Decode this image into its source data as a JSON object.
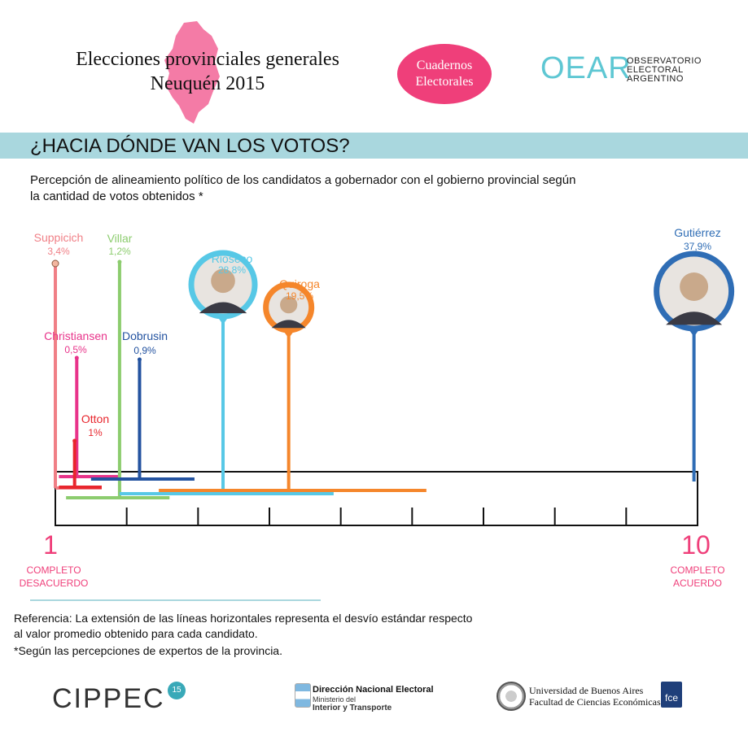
{
  "header": {
    "title_line1": "Elecciones provinciales generales",
    "title_line2": "Neuquén 2015",
    "badge_line1": "Cuadernos",
    "badge_line2": "Electorales",
    "logo_mark": "OEAR",
    "logo_line1": "OBSERVATORIO",
    "logo_line2": "ELECTORAL",
    "logo_line3": "ARGENTINO"
  },
  "section_title": "¿HACIA DÓNDE VAN LOS VOTOS?",
  "subtitle_line1": "Percepción de alineamiento político de los candidatos a gobernador con el gobierno provincial según",
  "subtitle_line2": "la cantidad de votos obtenidos *",
  "chart_data": {
    "type": "scatter",
    "x_axis": {
      "min": 1,
      "max": 10,
      "min_label": "1",
      "max_label": "10",
      "min_caption_line1": "COMPLETO",
      "min_caption_line2": "DESACUERDO",
      "max_caption_line1": "COMPLETO",
      "max_caption_line2": "ACUERDO"
    },
    "candidates": [
      {
        "name": "Suppicich",
        "percent_label": "3,4%",
        "votes_pct": 3.4,
        "mean": 1.0,
        "sd_low": 1.0,
        "sd_high": 1.65,
        "color": "#f07f86",
        "label_color": "#f07f86"
      },
      {
        "name": "Christiansen",
        "percent_label": "0,5%",
        "votes_pct": 0.5,
        "mean": 1.3,
        "sd_low": 1.05,
        "sd_high": 1.9,
        "color": "#e8338a",
        "label_color": "#e8338a"
      },
      {
        "name": "Otton",
        "percent_label": "1%",
        "votes_pct": 1.0,
        "mean": 1.27,
        "sd_low": 1.05,
        "sd_high": 1.65,
        "color": "#e8262d",
        "label_color": "#e8262d"
      },
      {
        "name": "Villar",
        "percent_label": "1,2%",
        "votes_pct": 1.2,
        "mean": 1.9,
        "sd_low": 1.15,
        "sd_high": 2.6,
        "color": "#8ccc6e",
        "label_color": "#8ccc6e"
      },
      {
        "name": "Dobrusin",
        "percent_label": "0,9%",
        "votes_pct": 0.9,
        "mean": 2.18,
        "sd_low": 1.5,
        "sd_high": 2.95,
        "color": "#2453a0",
        "label_color": "#2453a0"
      },
      {
        "name": "Rioseco",
        "percent_label": "28,8%",
        "votes_pct": 28.8,
        "mean": 3.35,
        "sd_low": 1.9,
        "sd_high": 4.9,
        "color": "#57c8e6",
        "label_color": "#57c8e6",
        "photo": true
      },
      {
        "name": "Quiroga",
        "percent_label": "19,5%",
        "votes_pct": 19.5,
        "mean": 4.27,
        "sd_low": 2.45,
        "sd_high": 6.2,
        "color": "#f5862b",
        "label_color": "#f5862b",
        "photo": true
      },
      {
        "name": "Gutiérrez",
        "percent_label": "37,9%",
        "votes_pct": 37.9,
        "mean": 9.95,
        "sd_low": 9.95,
        "sd_high": 9.95,
        "color": "#2f6db5",
        "label_color": "#2f6db5",
        "photo": true
      }
    ]
  },
  "reference_line1": "Referencia:  La extensión de las líneas horizontales representa el desvío estándar respecto",
  "reference_line2": "al valor promedio obtenido para cada candidato.",
  "footnote": "*Según las percepciones de expertos de la provincia.",
  "footer": {
    "cippec": "CIPPEC",
    "cippec_badge": "15",
    "dne_title": "Dirección Nacional Electoral",
    "dne_sub1": "Ministerio del",
    "dne_sub2": "Interior y Transporte",
    "uba_line1": "Universidad de Buenos Aires",
    "uba_line2": "Facultad de Ciencias Económicas",
    "fce": "fce"
  }
}
